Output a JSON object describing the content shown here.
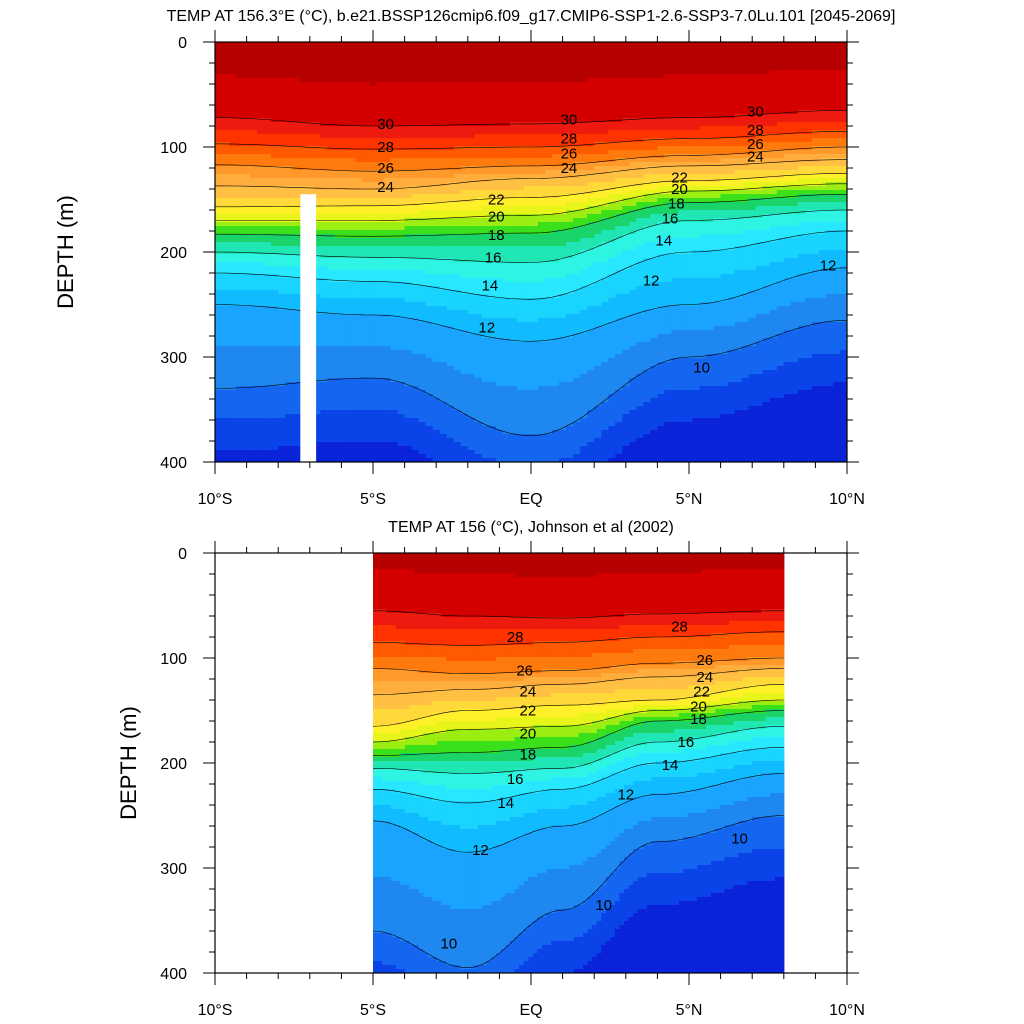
{
  "chart_data": [
    {
      "type": "heatmap",
      "title": "TEMP AT 156.3°E (°C), b.e21.BSSP126cmip6.f09_g17.CMIP6-SSP1-2.6-SSP3-7.0Lu.101 [2045-2069]",
      "ylabel": "DEPTH (m)",
      "xlabel": "",
      "xlim": [
        -10,
        10
      ],
      "ylim": [
        400,
        0
      ],
      "x_ticks": [
        {
          "value": -10,
          "label": "10°S"
        },
        {
          "value": -5,
          "label": "5°S"
        },
        {
          "value": 0,
          "label": "EQ"
        },
        {
          "value": 5,
          "label": "5°N"
        },
        {
          "value": 10,
          "label": "10°N"
        }
      ],
      "y_ticks": [
        {
          "value": 0,
          "label": "0"
        },
        {
          "value": 100,
          "label": "100"
        },
        {
          "value": 200,
          "label": "200"
        },
        {
          "value": 300,
          "label": "300"
        },
        {
          "value": 400,
          "label": "400"
        }
      ],
      "data_extent": {
        "x": [
          -10,
          10
        ],
        "depth": [
          0,
          400
        ]
      },
      "missing_band": {
        "x": [
          -7.3,
          -6.8
        ],
        "depth": [
          145,
          400
        ]
      },
      "isotherms": [
        {
          "temp": 30,
          "x": [
            -10,
            -5,
            0,
            5,
            10
          ],
          "depth": [
            72,
            80,
            78,
            72,
            65
          ]
        },
        {
          "temp": 28,
          "x": [
            -10,
            -5,
            0,
            5,
            10
          ],
          "depth": [
            97,
            102,
            100,
            92,
            85
          ]
        },
        {
          "temp": 26,
          "x": [
            -10,
            -5,
            0,
            5,
            10
          ],
          "depth": [
            117,
            123,
            118,
            108,
            100
          ]
        },
        {
          "temp": 24,
          "x": [
            -10,
            -5,
            0,
            5,
            10
          ],
          "depth": [
            137,
            140,
            130,
            118,
            112
          ]
        },
        {
          "temp": 22,
          "x": [
            -10,
            -5,
            0,
            5,
            10
          ],
          "depth": [
            157,
            156,
            148,
            132,
            125
          ]
        },
        {
          "temp": 20,
          "x": [
            -10,
            -5,
            0,
            5,
            10
          ],
          "depth": [
            170,
            170,
            165,
            142,
            135
          ]
        },
        {
          "temp": 18,
          "x": [
            -10,
            -5,
            0,
            5,
            10
          ],
          "depth": [
            183,
            185,
            182,
            153,
            145
          ]
        },
        {
          "temp": 16,
          "x": [
            -10,
            -5,
            0,
            5,
            10
          ],
          "depth": [
            200,
            205,
            210,
            170,
            160
          ]
        },
        {
          "temp": 14,
          "x": [
            -10,
            -5,
            0,
            5,
            10
          ],
          "depth": [
            220,
            228,
            245,
            200,
            180
          ]
        },
        {
          "temp": 12,
          "x": [
            -10,
            -5,
            0,
            5,
            10
          ],
          "depth": [
            250,
            260,
            285,
            250,
            215
          ]
        },
        {
          "temp": 10,
          "x": [
            -10,
            -5,
            0,
            5,
            10
          ],
          "depth": [
            330,
            320,
            375,
            300,
            265
          ]
        }
      ],
      "contour_labels": [
        {
          "text": "30",
          "x": -4.6,
          "depth": 78
        },
        {
          "text": "28",
          "x": -4.6,
          "depth": 100
        },
        {
          "text": "26",
          "x": -4.6,
          "depth": 120
        },
        {
          "text": "24",
          "x": -4.6,
          "depth": 138
        },
        {
          "text": "30",
          "x": 1.2,
          "depth": 74
        },
        {
          "text": "28",
          "x": 1.2,
          "depth": 92
        },
        {
          "text": "26",
          "x": 1.2,
          "depth": 106
        },
        {
          "text": "24",
          "x": 1.2,
          "depth": 120
        },
        {
          "text": "30",
          "x": 7.1,
          "depth": 66
        },
        {
          "text": "28",
          "x": 7.1,
          "depth": 84
        },
        {
          "text": "26",
          "x": 7.1,
          "depth": 97
        },
        {
          "text": "24",
          "x": 7.1,
          "depth": 109
        },
        {
          "text": "22",
          "x": -1.1,
          "depth": 150
        },
        {
          "text": "20",
          "x": -1.1,
          "depth": 166
        },
        {
          "text": "18",
          "x": -1.1,
          "depth": 184
        },
        {
          "text": "16",
          "x": -1.2,
          "depth": 205
        },
        {
          "text": "14",
          "x": -1.3,
          "depth": 232
        },
        {
          "text": "12",
          "x": -1.4,
          "depth": 272
        },
        {
          "text": "22",
          "x": 4.7,
          "depth": 129
        },
        {
          "text": "20",
          "x": 4.7,
          "depth": 140
        },
        {
          "text": "18",
          "x": 4.6,
          "depth": 154
        },
        {
          "text": "16",
          "x": 4.4,
          "depth": 168
        },
        {
          "text": "14",
          "x": 4.2,
          "depth": 189
        },
        {
          "text": "12",
          "x": 3.8,
          "depth": 227
        },
        {
          "text": "12",
          "x": 9.4,
          "depth": 213
        },
        {
          "text": "10",
          "x": 5.4,
          "depth": 310
        }
      ]
    },
    {
      "type": "heatmap",
      "title": "TEMP AT 156 (°C), Johnson et al (2002)",
      "ylabel": "DEPTH (m)",
      "xlabel": "",
      "xlim": [
        -10,
        10
      ],
      "ylim": [
        400,
        0
      ],
      "x_ticks": [
        {
          "value": -10,
          "label": "10°S"
        },
        {
          "value": -5,
          "label": "5°S"
        },
        {
          "value": 0,
          "label": "EQ"
        },
        {
          "value": 5,
          "label": "5°N"
        },
        {
          "value": 10,
          "label": "10°N"
        }
      ],
      "y_ticks": [
        {
          "value": 0,
          "label": "0"
        },
        {
          "value": 100,
          "label": "100"
        },
        {
          "value": 200,
          "label": "200"
        },
        {
          "value": 300,
          "label": "300"
        },
        {
          "value": 400,
          "label": "400"
        }
      ],
      "data_extent": {
        "x": [
          -5,
          8
        ],
        "depth": [
          0,
          400
        ]
      },
      "isotherms": [
        {
          "temp": 30,
          "x": [
            -5,
            -2,
            1,
            4,
            8
          ],
          "depth": [
            55,
            60,
            62,
            58,
            55
          ]
        },
        {
          "temp": 28,
          "x": [
            -5,
            -2,
            1,
            4,
            8
          ],
          "depth": [
            85,
            88,
            85,
            80,
            75
          ]
        },
        {
          "temp": 26,
          "x": [
            -5,
            -2,
            1,
            4,
            8
          ],
          "depth": [
            110,
            115,
            112,
            105,
            100
          ]
        },
        {
          "temp": 24,
          "x": [
            -5,
            -2,
            1,
            4,
            8
          ],
          "depth": [
            135,
            130,
            125,
            118,
            110
          ]
        },
        {
          "temp": 22,
          "x": [
            -5,
            -2,
            1,
            4,
            8
          ],
          "depth": [
            165,
            150,
            145,
            140,
            125
          ]
        },
        {
          "temp": 20,
          "x": [
            -5,
            -2,
            1,
            4,
            8
          ],
          "depth": [
            180,
            168,
            165,
            150,
            140
          ]
        },
        {
          "temp": 18,
          "x": [
            -5,
            -2,
            1,
            4,
            8
          ],
          "depth": [
            193,
            190,
            185,
            160,
            150
          ]
        },
        {
          "temp": 16,
          "x": [
            -5,
            -2,
            1,
            4,
            8
          ],
          "depth": [
            205,
            210,
            205,
            180,
            165
          ]
        },
        {
          "temp": 14,
          "x": [
            -5,
            -2,
            1,
            4,
            8
          ],
          "depth": [
            225,
            238,
            225,
            200,
            185
          ]
        },
        {
          "temp": 12,
          "x": [
            -5,
            -2,
            1,
            4,
            8
          ],
          "depth": [
            255,
            285,
            260,
            230,
            210
          ]
        },
        {
          "temp": 10,
          "x": [
            -5,
            -2,
            1,
            4,
            8
          ],
          "depth": [
            360,
            395,
            340,
            275,
            250
          ]
        }
      ],
      "contour_labels": [
        {
          "text": "28",
          "x": -0.5,
          "depth": 80
        },
        {
          "text": "28",
          "x": 4.7,
          "depth": 70
        },
        {
          "text": "26",
          "x": -0.2,
          "depth": 112
        },
        {
          "text": "24",
          "x": -0.1,
          "depth": 132
        },
        {
          "text": "22",
          "x": -0.1,
          "depth": 150
        },
        {
          "text": "20",
          "x": -0.1,
          "depth": 172
        },
        {
          "text": "18",
          "x": -0.1,
          "depth": 192
        },
        {
          "text": "16",
          "x": -0.5,
          "depth": 215
        },
        {
          "text": "14",
          "x": -0.8,
          "depth": 238
        },
        {
          "text": "12",
          "x": -1.6,
          "depth": 283
        },
        {
          "text": "26",
          "x": 5.5,
          "depth": 102
        },
        {
          "text": "24",
          "x": 5.5,
          "depth": 118
        },
        {
          "text": "22",
          "x": 5.4,
          "depth": 132
        },
        {
          "text": "20",
          "x": 5.3,
          "depth": 146
        },
        {
          "text": "18",
          "x": 5.3,
          "depth": 158
        },
        {
          "text": "16",
          "x": 4.9,
          "depth": 180
        },
        {
          "text": "14",
          "x": 4.4,
          "depth": 202
        },
        {
          "text": "12",
          "x": 3.0,
          "depth": 230
        },
        {
          "text": "10",
          "x": 6.6,
          "depth": 272
        },
        {
          "text": "10",
          "x": 2.3,
          "depth": 335
        },
        {
          "text": "10",
          "x": -2.6,
          "depth": 372
        }
      ]
    }
  ],
  "color_levels": [
    {
      "min": 31,
      "color": "#b70000"
    },
    {
      "min": 30,
      "color": "#d40000"
    },
    {
      "min": 29,
      "color": "#ef1a0f"
    },
    {
      "min": 28,
      "color": "#ff3300"
    },
    {
      "min": 27,
      "color": "#ff5a00"
    },
    {
      "min": 26,
      "color": "#ff7a0c"
    },
    {
      "min": 25,
      "color": "#ff9a2a"
    },
    {
      "min": 24,
      "color": "#ffad3c"
    },
    {
      "min": 23,
      "color": "#ffc043"
    },
    {
      "min": 22,
      "color": "#ffd83a"
    },
    {
      "min": 21,
      "color": "#fff02a"
    },
    {
      "min": 20,
      "color": "#e8f51a"
    },
    {
      "min": 19,
      "color": "#9cee12"
    },
    {
      "min": 18,
      "color": "#3ae01a"
    },
    {
      "min": 17,
      "color": "#1ad46a"
    },
    {
      "min": 16,
      "color": "#20e6b4"
    },
    {
      "min": 15,
      "color": "#2ef4e4"
    },
    {
      "min": 14,
      "color": "#28e8ff"
    },
    {
      "min": 13,
      "color": "#18d4ff"
    },
    {
      "min": 12,
      "color": "#10bcff"
    },
    {
      "min": 11,
      "color": "#1aa4ff"
    },
    {
      "min": 10,
      "color": "#1e88f0"
    },
    {
      "min": 9,
      "color": "#1466f0"
    },
    {
      "min": 8,
      "color": "#0a44e8"
    },
    {
      "min": -99,
      "color": "#0a22d8"
    }
  ]
}
